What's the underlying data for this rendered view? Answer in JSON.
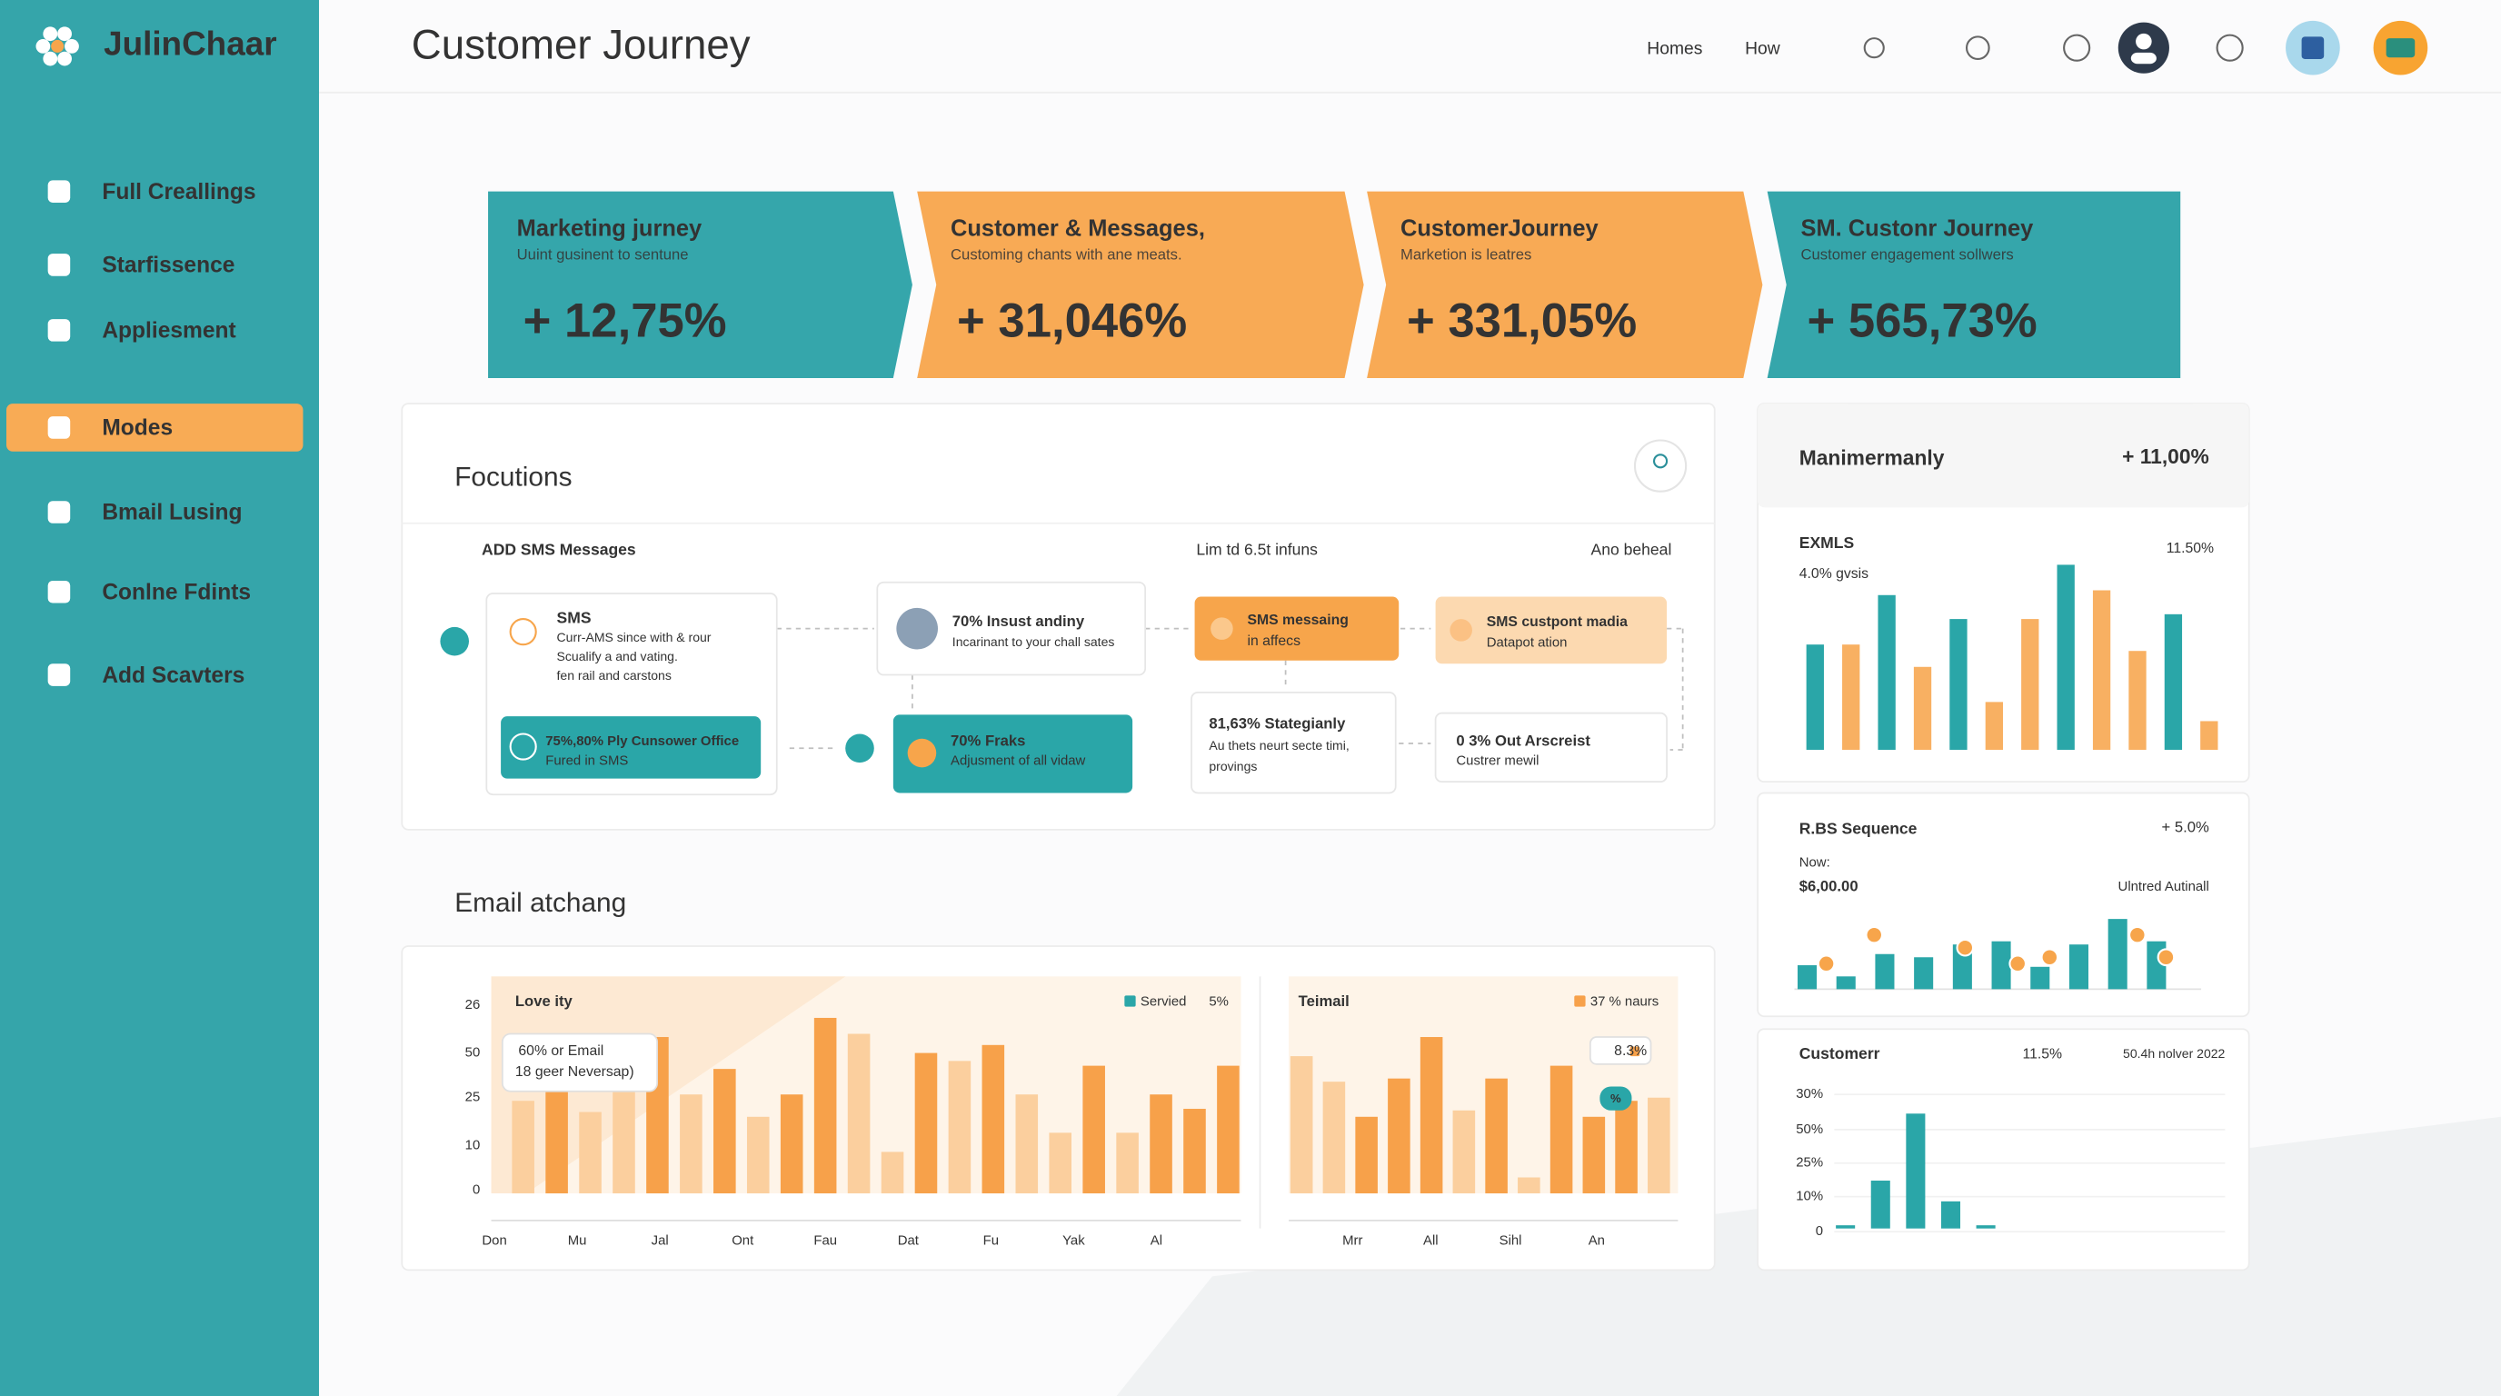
{
  "sidebar": {
    "brand": "JulinChaar",
    "nav": [
      "Full Creallings",
      "Starfissence",
      "Appliesment",
      "Modes",
      "Bmail Lusing",
      "Conlne Fdints",
      "Add Scavters"
    ]
  },
  "header": {
    "title": "Customer Journey",
    "links": [
      "Homes",
      "How"
    ]
  },
  "kpis": [
    {
      "title": "Marketing jurney",
      "subtitle": "Uuint gusinent to sentune",
      "value": "+ 12,75%",
      "color": "#35a6ab"
    },
    {
      "title": "Customer & Messages,",
      "subtitle": "Customing chants with ane meats.",
      "value": "+ 31,046%",
      "color": "#f8aa55"
    },
    {
      "title": "CustomerJourney",
      "subtitle": "Marketion is leatres",
      "value": "+ 331,05%",
      "color": "#f8aa55"
    },
    {
      "title": "SM. Custonr Journey",
      "subtitle": "Customer engagement sollwers",
      "value": "+ 565,73%",
      "color": "#35a6ab"
    }
  ],
  "focus": {
    "title": "Focutions",
    "columns": [
      "ADD SMS Messages",
      "Lim td 6.5t infuns",
      "Ano beheal"
    ],
    "nodes": [
      {
        "lines": [
          "SMS",
          "Curr-AMS since with & rour",
          "Scualify a and vating.",
          "fen rail and carstons"
        ]
      },
      {
        "lines": [
          "75%,80% Ply Cunsower Office",
          "Fured in SMS"
        ]
      },
      {
        "lines": [
          "70% Insust andiny",
          "Incarinant to your chall sates"
        ]
      },
      {
        "lines": [
          "70% Fraks",
          "Adjusment of all vidaw"
        ]
      },
      {
        "lines": [
          "SMS messaing",
          "in affecs"
        ]
      },
      {
        "lines": [
          "SMS custpont madia",
          "Datapot ation"
        ]
      },
      {
        "lines": [
          "81,63% Stategianly",
          "Au thets neurt secte timi,",
          "provings"
        ]
      },
      {
        "lines": [
          "0  3% Out Arscreist",
          "Custrer mewil"
        ]
      }
    ]
  },
  "email": {
    "title": "Email atchang",
    "charts": [
      {
        "type": "bar",
        "title": "Love ity",
        "axis_texts": [
          "26",
          "50",
          "25",
          "10",
          "0"
        ],
        "legend": [
          "Servied",
          "5%"
        ],
        "legend_color": "#2aa6a8",
        "annotation": [
          "60% or  Email",
          "18 geer Neversap)"
        ],
        "categories": [
          "Don",
          "Mu",
          "Jal",
          "Ont",
          "Fau",
          "Dat",
          "Fu",
          "Yak",
          "Al"
        ],
        "values": [
          58,
          98,
          51,
          98,
          98,
          62,
          78,
          48,
          62,
          110,
          100,
          26,
          88,
          83,
          93,
          62,
          38,
          80,
          38,
          62,
          53,
          80
        ],
        "colors": [
          "#fbcf9e",
          "#f7a14a",
          "#fbcf9e",
          "#fbcf9e",
          "#f7a14a",
          "#fbcf9e",
          "#f7a14a",
          "#fbcf9e",
          "#f7a14a",
          "#f7a14a",
          "#fbcf9e",
          "#fbcf9e",
          "#f7a14a",
          "#fbcf9e",
          "#f7a14a",
          "#fbcf9e",
          "#fbcf9e",
          "#f7a14a",
          "#fbcf9e",
          "#f7a14a",
          "#f7a14a",
          "#f7a14a"
        ]
      },
      {
        "type": "bar",
        "title": "Teimail",
        "legend": [
          "37 % naurs"
        ],
        "legend_color": "#f7a14a",
        "annotation": [
          "8.3%",
          "%"
        ],
        "categories": [
          "Mrr",
          "All",
          "Sihl",
          "An"
        ],
        "values": [
          86,
          70,
          48,
          72,
          98,
          52,
          72,
          10,
          80,
          48,
          58,
          60
        ],
        "colors": [
          "#fbcf9e",
          "#fbcf9e",
          "#f7a14a",
          "#f7a14a",
          "#f7a14a",
          "#fbcf9e",
          "#f7a14a",
          "#fbcf9e",
          "#f7a14a",
          "#f7a14a",
          "#f7a14a",
          "#fbcf9e"
        ]
      }
    ]
  },
  "panels": [
    {
      "title": "Manimermanly",
      "value": "+ 11,00%",
      "chart": {
        "type": "bar",
        "title": "EXMLS",
        "subtitle": "4.0% gvsis",
        "note": "11.50%",
        "values": [
          66,
          66,
          97,
          52,
          82,
          30,
          82,
          116,
          100,
          62,
          85,
          18
        ],
        "colors": [
          "#2aa6a8",
          "#f8b062",
          "#2aa6a8",
          "#f8b062",
          "#2aa6a8",
          "#f8b062",
          "#f8b062",
          "#2aa6a8",
          "#f8b062",
          "#f8b062",
          "#2aa6a8",
          "#f8b062"
        ]
      }
    },
    {
      "title": "R.BS Sequence",
      "value": "+ 5.0%",
      "chart": {
        "type": "bar",
        "subtitle": "Now:",
        "amount": "$6,00.00",
        "note": "Ulntred Autinall",
        "color": "#2aa6a8",
        "values": [
          15,
          8,
          22,
          20,
          28,
          30,
          14,
          28,
          44,
          30
        ]
      }
    },
    {
      "title": "Customerr",
      "value": "11.5%",
      "chart": {
        "type": "bar",
        "note": "50.4h  nolver 2022",
        "axis_texts": [
          "30%",
          "50%",
          "25%",
          "10%",
          "0"
        ],
        "color": "#2aa6a8",
        "values": [
          2,
          30,
          72,
          17,
          2
        ]
      }
    }
  ]
}
